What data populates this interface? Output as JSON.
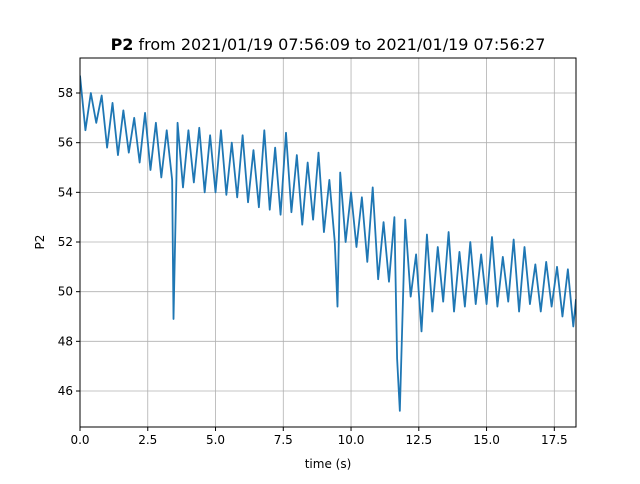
{
  "chart_data": {
    "type": "line",
    "title": "P2",
    "subtitle": "from 2021/01/19 07:56:09 to 2021/01/19 07:56:27",
    "x_label": "time (s)",
    "y_label": "P2",
    "xlim": [
      0,
      18.3
    ],
    "ylim": [
      44.55,
      59.41
    ],
    "xticks": [
      {
        "value": 0,
        "label": "0.0"
      },
      2.5,
      {
        "value": 5,
        "label": "5.0"
      },
      7.5,
      {
        "value": 10,
        "label": "10.0"
      },
      12.5,
      {
        "value": 15,
        "label": "15.0"
      },
      17.5
    ],
    "yticks": [
      46,
      48,
      50,
      52,
      54,
      56,
      58
    ],
    "grid": true,
    "series": [
      {
        "color": "#1f77b4",
        "x": [
          0,
          0.2,
          0.4,
          0.6,
          0.8,
          1.0,
          1.2,
          1.4,
          1.6,
          1.8,
          2.0,
          2.2,
          2.4,
          2.6,
          2.8,
          3.0,
          3.2,
          3.4,
          3.45,
          3.6,
          3.8,
          4.0,
          4.2,
          4.4,
          4.6,
          4.8,
          5.0,
          5.2,
          5.4,
          5.6,
          5.8,
          6.0,
          6.2,
          6.4,
          6.6,
          6.8,
          7.0,
          7.2,
          7.4,
          7.6,
          7.8,
          8.0,
          8.2,
          8.4,
          8.6,
          8.8,
          9.0,
          9.2,
          9.4,
          9.5,
          9.6,
          9.8,
          10.0,
          10.2,
          10.4,
          10.6,
          10.8,
          11.0,
          11.2,
          11.4,
          11.6,
          11.7,
          11.8,
          12.0,
          12.2,
          12.4,
          12.6,
          12.8,
          13.0,
          13.2,
          13.4,
          13.6,
          13.8,
          14.0,
          14.2,
          14.4,
          14.6,
          14.8,
          15.0,
          15.2,
          15.4,
          15.6,
          15.8,
          16.0,
          16.2,
          16.4,
          16.6,
          16.8,
          17.0,
          17.2,
          17.4,
          17.6,
          17.8,
          18.0,
          18.2,
          18.3
        ],
        "values": [
          58.7,
          56.5,
          58.0,
          56.8,
          57.9,
          55.8,
          57.6,
          55.5,
          57.3,
          55.6,
          57.0,
          55.2,
          57.2,
          54.9,
          56.8,
          54.6,
          56.5,
          54.5,
          48.9,
          56.8,
          54.2,
          56.5,
          54.4,
          56.6,
          54.0,
          56.3,
          54.0,
          56.5,
          53.9,
          56.0,
          53.8,
          56.3,
          53.6,
          55.7,
          53.4,
          56.5,
          53.3,
          55.8,
          53.1,
          56.4,
          53.2,
          55.5,
          52.7,
          55.2,
          52.9,
          55.6,
          52.4,
          54.5,
          52.0,
          49.4,
          54.8,
          52.0,
          54.0,
          51.8,
          53.8,
          51.2,
          54.2,
          50.5,
          52.8,
          50.4,
          53.0,
          47.3,
          45.2,
          52.9,
          49.8,
          51.5,
          48.4,
          52.3,
          49.2,
          51.8,
          49.6,
          52.4,
          49.2,
          51.6,
          49.4,
          52.0,
          49.5,
          51.5,
          49.5,
          52.2,
          49.4,
          51.4,
          49.6,
          52.1,
          49.2,
          51.8,
          49.5,
          51.1,
          49.2,
          51.2,
          49.4,
          51.0,
          49.0,
          50.9,
          48.6,
          49.7
        ]
      }
    ]
  }
}
